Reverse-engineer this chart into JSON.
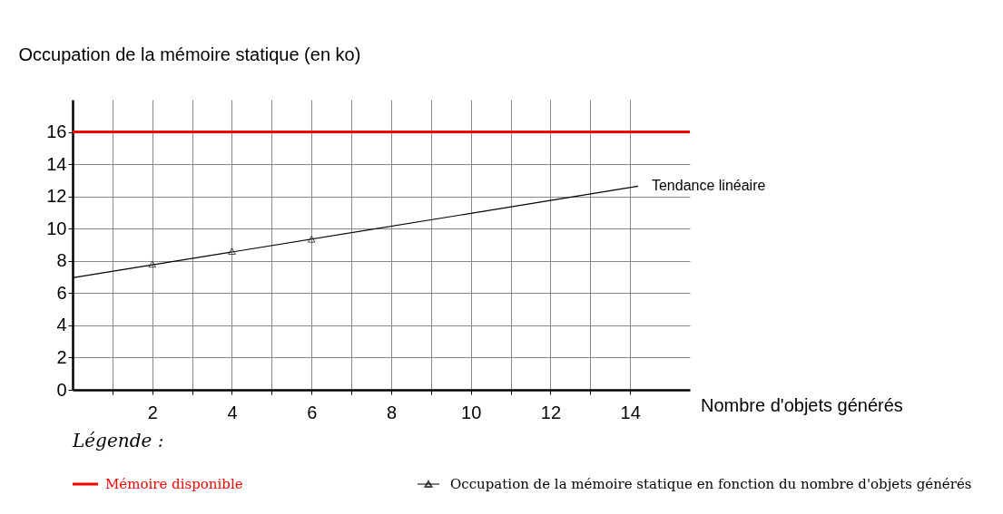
{
  "chart_data": {
    "type": "scatter",
    "xlabel": "Nombre d'objets générés",
    "ylabel": "Occupation de la mémoire statique (en ko)",
    "xlim": [
      0,
      15.5
    ],
    "ylim": [
      0,
      18
    ],
    "xticks": [
      {
        "value": 1,
        "label": null
      },
      2,
      {
        "value": 3,
        "label": null
      },
      4,
      {
        "value": 5,
        "label": null
      },
      6,
      {
        "value": 7,
        "label": null
      },
      8,
      {
        "value": 9,
        "label": null
      },
      10,
      {
        "value": 11,
        "label": null
      },
      12,
      {
        "value": 13,
        "label": null
      },
      14
    ],
    "yticks": [
      0,
      2,
      4,
      6,
      8,
      10,
      12,
      14,
      16
    ],
    "grid": true,
    "legend": "bottom",
    "series": [
      {
        "name": "Occupation de la mémoire statique en fonction du nombre d'objets générés",
        "marker": "triangle",
        "color": "#000000",
        "x": [
          2,
          4,
          6
        ],
        "values": [
          7.8,
          8.6,
          9.35
        ]
      },
      {
        "name": "Tendance linéaire",
        "type": "line",
        "marker": "none",
        "color": "#000000",
        "x": [
          0,
          14.2
        ],
        "values": [
          6.95,
          12.63
        ]
      }
    ],
    "ref_lines": [
      {
        "axis": "y",
        "value": 16,
        "label": "Mémoire disponible",
        "color": "#ff0000"
      }
    ],
    "annotations": [
      "Légende :"
    ]
  }
}
